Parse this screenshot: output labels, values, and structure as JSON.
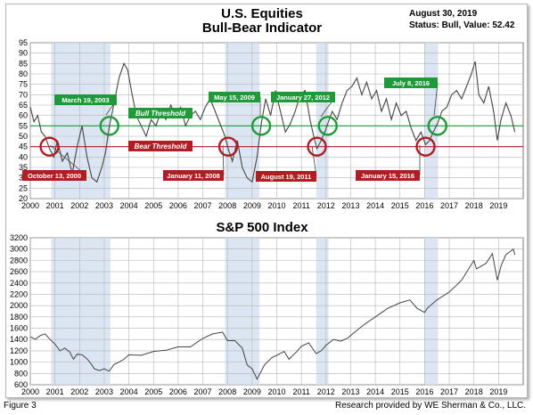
{
  "figure_label": "Figure 3",
  "credit": "Research provided by WE Sherman & Co., LLC.",
  "top_chart": {
    "title_line1": "U.S. Equities",
    "title_line2": "Bull-Bear Indicator",
    "date": "August 30, 2019",
    "status": "Status: Bull, Value: 52.42",
    "bull_threshold_label": "Bull Threshold",
    "bear_threshold_label": "Bear Threshold",
    "annotations": [
      {
        "label": "March 19, 2003",
        "type": "bull"
      },
      {
        "label": "May 15, 2009",
        "type": "bull"
      },
      {
        "label": "January 27, 2012",
        "type": "bull"
      },
      {
        "label": "July 8, 2016",
        "type": "bull"
      },
      {
        "label": "October 13, 2000",
        "type": "bear"
      },
      {
        "label": "January 11, 2008",
        "type": "bear"
      },
      {
        "label": "August 19, 2011",
        "type": "bear"
      },
      {
        "label": "January 15, 2016",
        "type": "bear"
      }
    ]
  },
  "bottom_chart": {
    "title": "S&P 500 Index"
  },
  "colors": {
    "bull": "#1f9a3a",
    "bear": "#b01e23",
    "shade": "#dbe6f2",
    "line": "#444444",
    "grid": "#b5b5b5"
  },
  "chart_data": [
    {
      "type": "line",
      "title": "U.S. Equities Bull-Bear Indicator",
      "x_ticks": [
        "2000",
        "2001",
        "2002",
        "2003",
        "2004",
        "2005",
        "2006",
        "2007",
        "2008",
        "2009",
        "2010",
        "2011",
        "2012",
        "2013",
        "2014",
        "2015",
        "2016",
        "2017",
        "2018",
        "2019"
      ],
      "y_ticks": [
        20,
        25,
        30,
        35,
        40,
        45,
        50,
        55,
        60,
        65,
        70,
        75,
        80,
        85,
        90,
        95
      ],
      "xlim": [
        2000,
        2020
      ],
      "ylim": [
        20,
        95
      ],
      "grid": true,
      "thresholds": {
        "bull": 55,
        "bear": 45
      },
      "shaded_periods": [
        [
          2000.85,
          2003.25
        ],
        [
          2007.9,
          2009.3
        ],
        [
          2011.6,
          2012.1
        ],
        [
          2016.0,
          2016.55
        ]
      ],
      "signals": [
        {
          "label": "October 13, 2000",
          "x": 2000.78,
          "y": 45
        },
        {
          "label": "March 19, 2003",
          "x": 2003.21,
          "y": 55
        },
        {
          "label": "January 11, 2008",
          "x": 2008.03,
          "y": 45
        },
        {
          "label": "May 15, 2009",
          "x": 2009.37,
          "y": 55
        },
        {
          "label": "August 19, 2011",
          "x": 2011.63,
          "y": 45
        },
        {
          "label": "January 27, 2012",
          "x": 2012.07,
          "y": 55
        },
        {
          "label": "January 15, 2016",
          "x": 2016.04,
          "y": 45
        },
        {
          "label": "July 8, 2016",
          "x": 2016.52,
          "y": 55
        }
      ],
      "series": [
        {
          "x": [
            2000.0,
            2000.15,
            2000.3,
            2000.45,
            2000.6,
            2000.78,
            2000.95,
            2001.1,
            2001.3,
            2001.5,
            2001.7,
            2001.9,
            2002.1,
            2002.3,
            2002.5,
            2002.7,
            2002.9,
            2003.05,
            2003.21,
            2003.4,
            2003.6,
            2003.8,
            2003.95,
            2004.1,
            2004.3,
            2004.5,
            2004.7,
            2004.9,
            2005.1,
            2005.3,
            2005.5,
            2005.7,
            2005.9,
            2006.1,
            2006.3,
            2006.5,
            2006.7,
            2006.9,
            2007.1,
            2007.3,
            2007.5,
            2007.7,
            2007.9,
            2008.03,
            2008.2,
            2008.4,
            2008.6,
            2008.8,
            2009.0,
            2009.2,
            2009.37,
            2009.55,
            2009.75,
            2009.95,
            2010.15,
            2010.35,
            2010.55,
            2010.75,
            2010.95,
            2011.15,
            2011.35,
            2011.5,
            2011.63,
            2011.8,
            2011.95,
            2012.07,
            2012.25,
            2012.45,
            2012.65,
            2012.85,
            2013.05,
            2013.25,
            2013.45,
            2013.65,
            2013.85,
            2014.05,
            2014.25,
            2014.45,
            2014.65,
            2014.85,
            2015.05,
            2015.25,
            2015.45,
            2015.65,
            2015.85,
            2016.04,
            2016.2,
            2016.35,
            2016.52,
            2016.7,
            2016.9,
            2017.1,
            2017.3,
            2017.5,
            2017.7,
            2017.9,
            2018.05,
            2018.2,
            2018.4,
            2018.6,
            2018.8,
            2018.95,
            2019.1,
            2019.3,
            2019.5,
            2019.66
          ],
          "values": [
            64,
            57,
            60,
            52,
            50,
            44,
            40,
            48,
            38,
            42,
            32,
            45,
            55,
            40,
            30,
            28,
            35,
            42,
            55,
            66,
            78,
            85,
            82,
            72,
            60,
            55,
            50,
            58,
            55,
            62,
            58,
            65,
            60,
            64,
            55,
            60,
            62,
            58,
            64,
            68,
            62,
            56,
            50,
            44,
            38,
            48,
            35,
            30,
            28,
            40,
            56,
            68,
            60,
            72,
            62,
            52,
            56,
            62,
            70,
            72,
            58,
            50,
            44,
            48,
            52,
            56,
            62,
            58,
            66,
            72,
            74,
            78,
            70,
            76,
            68,
            72,
            62,
            68,
            58,
            66,
            60,
            62,
            54,
            48,
            52,
            46,
            48,
            52,
            56,
            62,
            64,
            70,
            72,
            68,
            74,
            80,
            86,
            70,
            66,
            74,
            62,
            48,
            58,
            66,
            60,
            52
          ]
        }
      ]
    },
    {
      "type": "line",
      "title": "S&P 500 Index",
      "x_ticks": [
        "2000",
        "2001",
        "2002",
        "2003",
        "2004",
        "2005",
        "2006",
        "2007",
        "2008",
        "2009",
        "2010",
        "2011",
        "2012",
        "2013",
        "2014",
        "2015",
        "2016",
        "2017",
        "2018",
        "2019"
      ],
      "y_ticks": [
        600,
        800,
        1000,
        1200,
        1400,
        1600,
        1800,
        2000,
        2200,
        2400,
        2600,
        2800,
        3000,
        3200
      ],
      "xlim": [
        2000,
        2020
      ],
      "ylim": [
        600,
        3200
      ],
      "grid": true,
      "shaded_periods": [
        [
          2000.85,
          2003.25
        ],
        [
          2007.9,
          2009.3
        ],
        [
          2011.6,
          2012.1
        ],
        [
          2016.0,
          2016.55
        ]
      ],
      "series": [
        {
          "x": [
            2000.0,
            2000.2,
            2000.4,
            2000.6,
            2000.8,
            2001.0,
            2001.2,
            2001.4,
            2001.6,
            2001.75,
            2001.9,
            2002.1,
            2002.3,
            2002.5,
            2002.6,
            2002.8,
            2003.0,
            2003.2,
            2003.4,
            2003.6,
            2003.8,
            2004.0,
            2004.5,
            2005.0,
            2005.5,
            2006.0,
            2006.5,
            2007.0,
            2007.4,
            2007.8,
            2008.0,
            2008.3,
            2008.6,
            2008.8,
            2009.0,
            2009.2,
            2009.5,
            2009.8,
            2010.0,
            2010.3,
            2010.5,
            2010.8,
            2011.0,
            2011.3,
            2011.6,
            2011.8,
            2012.0,
            2012.3,
            2012.6,
            2012.9,
            2013.0,
            2013.5,
            2014.0,
            2014.5,
            2015.0,
            2015.4,
            2015.7,
            2016.0,
            2016.1,
            2016.5,
            2017.0,
            2017.5,
            2018.0,
            2018.1,
            2018.5,
            2018.75,
            2018.95,
            2019.1,
            2019.3,
            2019.45,
            2019.6,
            2019.66
          ],
          "values": [
            1450,
            1400,
            1470,
            1500,
            1400,
            1320,
            1200,
            1250,
            1180,
            1050,
            1140,
            1130,
            1060,
            950,
            880,
            850,
            880,
            840,
            960,
            1000,
            1050,
            1130,
            1120,
            1190,
            1210,
            1270,
            1270,
            1420,
            1500,
            1530,
            1380,
            1380,
            1250,
            950,
            880,
            700,
            950,
            1080,
            1120,
            1190,
            1050,
            1180,
            1280,
            1340,
            1150,
            1200,
            1300,
            1400,
            1370,
            1430,
            1470,
            1650,
            1800,
            1950,
            2050,
            2100,
            1950,
            1880,
            1950,
            2100,
            2240,
            2450,
            2800,
            2650,
            2750,
            2920,
            2450,
            2700,
            2900,
            2950,
            3000,
            2900
          ]
        }
      ]
    }
  ]
}
